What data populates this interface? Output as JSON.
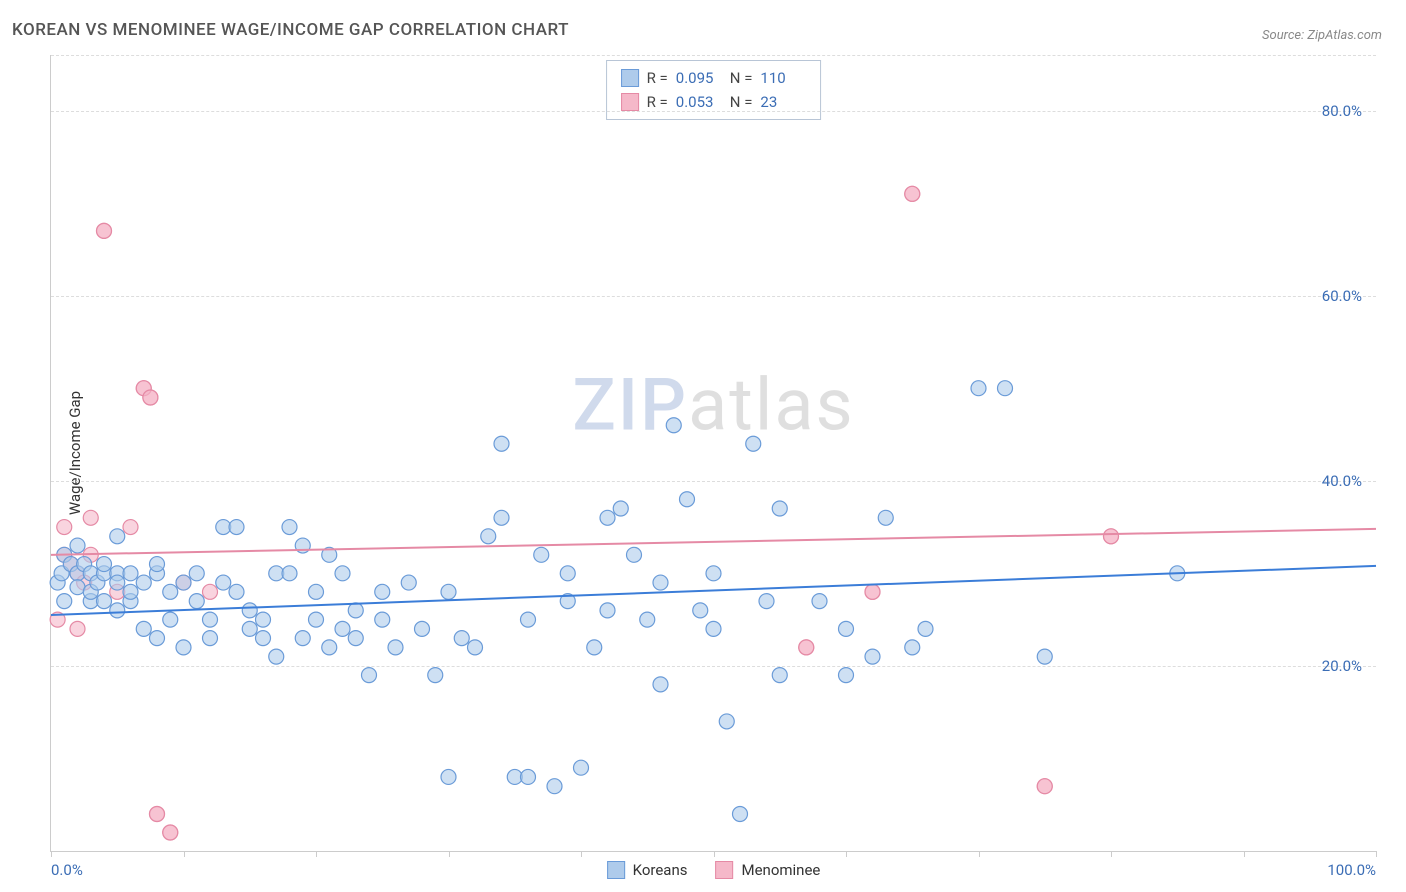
{
  "title": "KOREAN VS MENOMINEE WAGE/INCOME GAP CORRELATION CHART",
  "source": "Source: ZipAtlas.com",
  "y_axis_label": "Wage/Income Gap",
  "watermark": {
    "zip": "ZIP",
    "atlas": "atlas"
  },
  "chart": {
    "type": "scatter",
    "xlim": [
      0,
      100
    ],
    "ylim": [
      0,
      86
    ],
    "x_ticks": [
      0,
      10,
      20,
      30,
      40,
      50,
      60,
      70,
      80,
      90,
      100
    ],
    "x_tick_labels": {
      "0": "0.0%",
      "100": "100.0%"
    },
    "y_ticks": [
      20,
      40,
      60,
      80
    ],
    "y_tick_labels": {
      "20": "20.0%",
      "40": "40.0%",
      "60": "60.0%",
      "80": "80.0%"
    },
    "y_extra_grid": [
      86
    ],
    "background_color": "#ffffff",
    "grid_color": "#dddddd",
    "axis_color": "#cccccc",
    "marker_radius": 7.5,
    "marker_stroke_width": 1.2,
    "trend_line_width": 2,
    "tick_label_color": "#3b6db5",
    "axis_label_color": "#333333",
    "title_color": "#555555",
    "title_fontsize": 17,
    "label_fontsize": 15,
    "tick_fontsize": 15
  },
  "series": {
    "koreans": {
      "label": "Koreans",
      "fill": "#aecbeb",
      "stroke": "#6a9bd8",
      "fill_opacity": 0.6,
      "line_color": "#3b7dd8",
      "trend": {
        "y_at_x0": 25.5,
        "y_at_x100": 30.8
      },
      "stats": {
        "R": "0.095",
        "N": "110"
      },
      "points": [
        [
          0.5,
          29
        ],
        [
          0.8,
          30
        ],
        [
          1,
          27
        ],
        [
          1,
          32
        ],
        [
          1.5,
          31
        ],
        [
          2,
          30
        ],
        [
          2,
          28.5
        ],
        [
          2,
          33
        ],
        [
          2.5,
          31
        ],
        [
          3,
          30
        ],
        [
          3,
          27
        ],
        [
          3,
          28
        ],
        [
          3.5,
          29
        ],
        [
          4,
          30
        ],
        [
          4,
          31
        ],
        [
          4,
          27
        ],
        [
          5,
          34
        ],
        [
          5,
          30
        ],
        [
          5,
          29
        ],
        [
          5,
          26
        ],
        [
          6,
          27
        ],
        [
          6,
          30
        ],
        [
          6,
          28
        ],
        [
          7,
          29
        ],
        [
          7,
          24
        ],
        [
          8,
          30
        ],
        [
          8,
          23
        ],
        [
          8,
          31
        ],
        [
          9,
          28
        ],
        [
          9,
          25
        ],
        [
          10,
          29
        ],
        [
          10,
          22
        ],
        [
          11,
          30
        ],
        [
          11,
          27
        ],
        [
          12,
          25
        ],
        [
          12,
          23
        ],
        [
          13,
          35
        ],
        [
          13,
          29
        ],
        [
          14,
          35
        ],
        [
          14,
          28
        ],
        [
          15,
          26
        ],
        [
          15,
          24
        ],
        [
          16,
          25
        ],
        [
          16,
          23
        ],
        [
          17,
          21
        ],
        [
          17,
          30
        ],
        [
          18,
          35
        ],
        [
          18,
          30
        ],
        [
          19,
          33
        ],
        [
          19,
          23
        ],
        [
          20,
          25
        ],
        [
          20,
          28
        ],
        [
          21,
          22
        ],
        [
          21,
          32
        ],
        [
          22,
          30
        ],
        [
          22,
          24
        ],
        [
          23,
          26
        ],
        [
          23,
          23
        ],
        [
          24,
          19
        ],
        [
          25,
          25
        ],
        [
          25,
          28
        ],
        [
          26,
          22
        ],
        [
          27,
          29
        ],
        [
          28,
          24
        ],
        [
          29,
          19
        ],
        [
          30,
          8
        ],
        [
          30,
          28
        ],
        [
          31,
          23
        ],
        [
          32,
          22
        ],
        [
          33,
          34
        ],
        [
          34,
          44
        ],
        [
          34,
          36
        ],
        [
          35,
          8
        ],
        [
          36,
          25
        ],
        [
          36,
          8
        ],
        [
          37,
          32
        ],
        [
          38,
          7
        ],
        [
          39,
          27
        ],
        [
          39,
          30
        ],
        [
          40,
          9
        ],
        [
          41,
          22
        ],
        [
          42,
          36
        ],
        [
          42,
          26
        ],
        [
          43,
          37
        ],
        [
          44,
          32
        ],
        [
          45,
          25
        ],
        [
          46,
          18
        ],
        [
          46,
          29
        ],
        [
          47,
          46
        ],
        [
          48,
          38
        ],
        [
          49,
          26
        ],
        [
          50,
          24
        ],
        [
          50,
          30
        ],
        [
          51,
          14
        ],
        [
          52,
          4
        ],
        [
          53,
          44
        ],
        [
          54,
          27
        ],
        [
          55,
          19
        ],
        [
          55,
          37
        ],
        [
          58,
          27
        ],
        [
          60,
          24
        ],
        [
          60,
          19
        ],
        [
          62,
          21
        ],
        [
          63,
          36
        ],
        [
          65,
          22
        ],
        [
          66,
          24
        ],
        [
          70,
          50
        ],
        [
          72,
          50
        ],
        [
          75,
          21
        ],
        [
          85,
          30
        ]
      ]
    },
    "menominee": {
      "label": "Menominee",
      "fill": "#f5b8c9",
      "stroke": "#e58aa5",
      "fill_opacity": 0.6,
      "line_color": "#e58aa5",
      "trend": {
        "y_at_x0": 32.0,
        "y_at_x100": 34.8
      },
      "stats": {
        "R": "0.053",
        "N": "23"
      },
      "points": [
        [
          0.5,
          25
        ],
        [
          1,
          32
        ],
        [
          1,
          35
        ],
        [
          1.5,
          31
        ],
        [
          2,
          24
        ],
        [
          2,
          30
        ],
        [
          2.5,
          29
        ],
        [
          3,
          36
        ],
        [
          3,
          32
        ],
        [
          4,
          67
        ],
        [
          5,
          28
        ],
        [
          6,
          35
        ],
        [
          7,
          50
        ],
        [
          7.5,
          49
        ],
        [
          8,
          4
        ],
        [
          9,
          2
        ],
        [
          10,
          29
        ],
        [
          12,
          28
        ],
        [
          57,
          22
        ],
        [
          62,
          28
        ],
        [
          65,
          71
        ],
        [
          75,
          7
        ],
        [
          80,
          34
        ]
      ]
    }
  },
  "legend_top": {
    "r_label": "R =",
    "n_label": "N ="
  }
}
